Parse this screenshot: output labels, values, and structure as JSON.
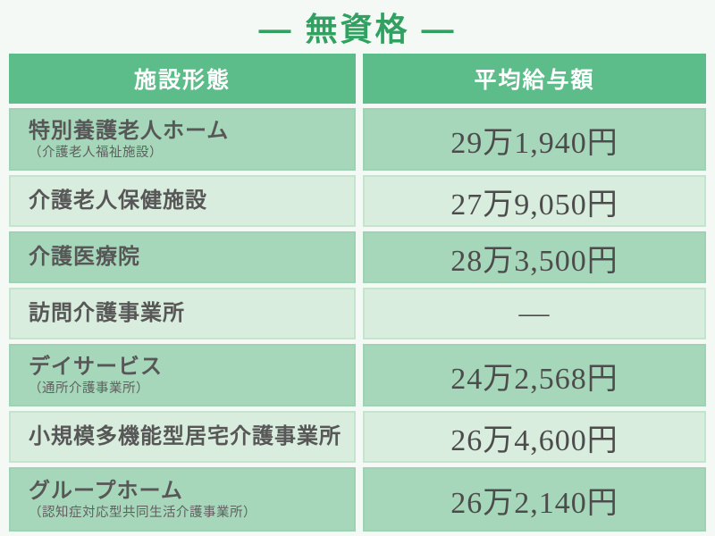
{
  "page": {
    "title": "— 無資格 —"
  },
  "theme": {
    "background": "#f4f9f5",
    "title_green": "#31a162",
    "header_green": "#5cbd8a",
    "row_light_green": "#d9edde",
    "row_dark_green": "#a7d7ba",
    "name_text": "#575757",
    "salary_text": "#4c4c4c",
    "header_text": "#ffffff"
  },
  "table": {
    "headers": {
      "facility": "施設形態",
      "salary": "平均給与額"
    },
    "rows": [
      {
        "name": "特別養護老人ホーム",
        "subtitle": "（介護老人福祉施設）",
        "salary": "29万1,940円"
      },
      {
        "name": "介護老人保健施設",
        "subtitle": "",
        "salary": "27万9,050円"
      },
      {
        "name": "介護医療院",
        "subtitle": "",
        "salary": "28万3,500円"
      },
      {
        "name": "訪問介護事業所",
        "subtitle": "",
        "salary": "―"
      },
      {
        "name": "デイサービス",
        "subtitle": "（通所介護事業所）",
        "salary": "24万2,568円"
      },
      {
        "name": "小規模多機能型居宅介護事業所",
        "subtitle": "",
        "salary": "26万4,600円"
      },
      {
        "name": "グループホーム",
        "subtitle": "（認知症対応型共同生活介護事業所）",
        "salary": "26万2,140円"
      }
    ]
  },
  "chart_data": {
    "type": "table",
    "title": "— 無資格 —",
    "columns": [
      "施設形態",
      "平均給与額"
    ],
    "rows": [
      [
        "特別養護老人ホーム（介護老人福祉施設）",
        "29万1,940円"
      ],
      [
        "介護老人保健施設",
        "27万9,050円"
      ],
      [
        "介護医療院",
        "28万3,500円"
      ],
      [
        "訪問介護事業所",
        "―"
      ],
      [
        "デイサービス（通所介護事業所）",
        "24万2,568円"
      ],
      [
        "小規模多機能型居宅介護事業所",
        "26万4,600円"
      ],
      [
        "グループホーム（認知症対応型共同生活介護事業所）",
        "26万2,140円"
      ]
    ],
    "values_yen": [
      291940,
      279050,
      283500,
      null,
      242568,
      264600,
      262140
    ]
  }
}
